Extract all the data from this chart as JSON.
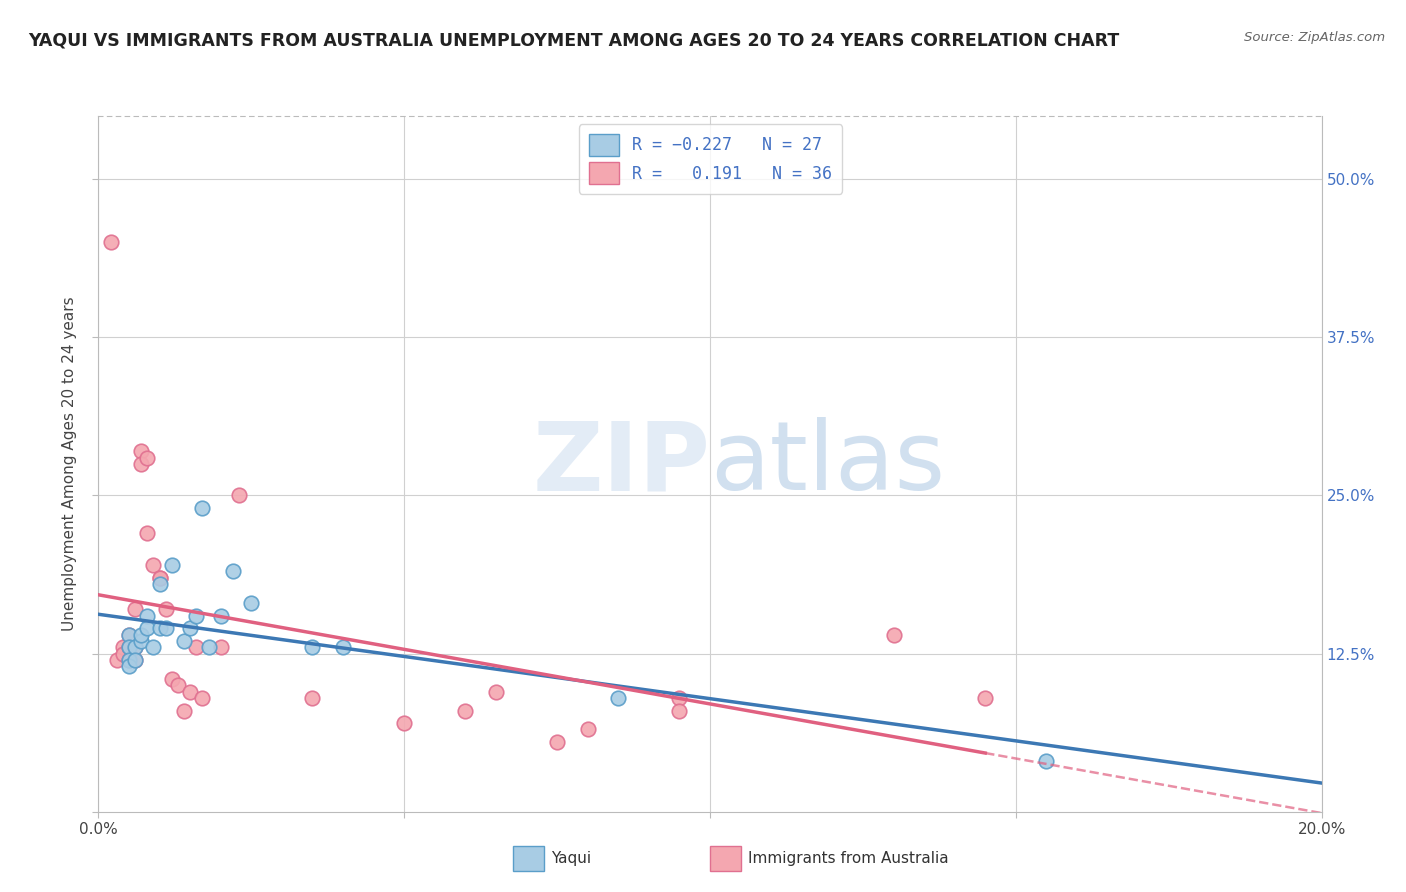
{
  "title": "YAQUI VS IMMIGRANTS FROM AUSTRALIA UNEMPLOYMENT AMONG AGES 20 TO 24 YEARS CORRELATION CHART",
  "source_text": "Source: ZipAtlas.com",
  "ylabel": "Unemployment Among Ages 20 to 24 years",
  "xlim": [
    0.0,
    0.2
  ],
  "ylim": [
    0.0,
    0.55
  ],
  "yticks": [
    0.0,
    0.125,
    0.25,
    0.375,
    0.5
  ],
  "xticks": [
    0.0,
    0.05,
    0.1,
    0.15,
    0.2
  ],
  "xtick_labels": [
    "0.0%",
    "",
    "",
    "",
    "20.0%"
  ],
  "right_ytick_labels": [
    "",
    "12.5%",
    "25.0%",
    "37.5%",
    "50.0%"
  ],
  "blue_scatter_color": "#a8cce4",
  "blue_edge_color": "#5a9ec9",
  "pink_scatter_color": "#f4a7b0",
  "pink_edge_color": "#e07090",
  "blue_line_color": "#3c78b4",
  "pink_line_color": "#e06080",
  "right_axis_color": "#4472c4",
  "grid_color": "#d0d0d0",
  "background_color": "#ffffff",
  "yaqui_x": [
    0.005,
    0.005,
    0.005,
    0.005,
    0.006,
    0.006,
    0.007,
    0.007,
    0.008,
    0.008,
    0.009,
    0.01,
    0.01,
    0.011,
    0.012,
    0.014,
    0.015,
    0.016,
    0.017,
    0.018,
    0.02,
    0.022,
    0.025,
    0.035,
    0.04,
    0.085,
    0.155
  ],
  "yaqui_y": [
    0.14,
    0.13,
    0.12,
    0.115,
    0.13,
    0.12,
    0.135,
    0.14,
    0.155,
    0.145,
    0.13,
    0.18,
    0.145,
    0.145,
    0.195,
    0.135,
    0.145,
    0.155,
    0.24,
    0.13,
    0.155,
    0.19,
    0.165,
    0.13,
    0.13,
    0.09,
    0.04
  ],
  "aus_x": [
    0.002,
    0.003,
    0.004,
    0.004,
    0.005,
    0.005,
    0.005,
    0.006,
    0.006,
    0.006,
    0.007,
    0.007,
    0.008,
    0.008,
    0.009,
    0.01,
    0.01,
    0.011,
    0.012,
    0.013,
    0.014,
    0.015,
    0.016,
    0.017,
    0.02,
    0.023,
    0.035,
    0.05,
    0.06,
    0.065,
    0.075,
    0.08,
    0.095,
    0.095,
    0.13,
    0.145
  ],
  "aus_y": [
    0.45,
    0.12,
    0.13,
    0.125,
    0.14,
    0.13,
    0.12,
    0.16,
    0.13,
    0.12,
    0.285,
    0.275,
    0.22,
    0.28,
    0.195,
    0.185,
    0.185,
    0.16,
    0.105,
    0.1,
    0.08,
    0.095,
    0.13,
    0.09,
    0.13,
    0.25,
    0.09,
    0.07,
    0.08,
    0.095,
    0.055,
    0.065,
    0.09,
    0.08,
    0.14,
    0.09
  ]
}
